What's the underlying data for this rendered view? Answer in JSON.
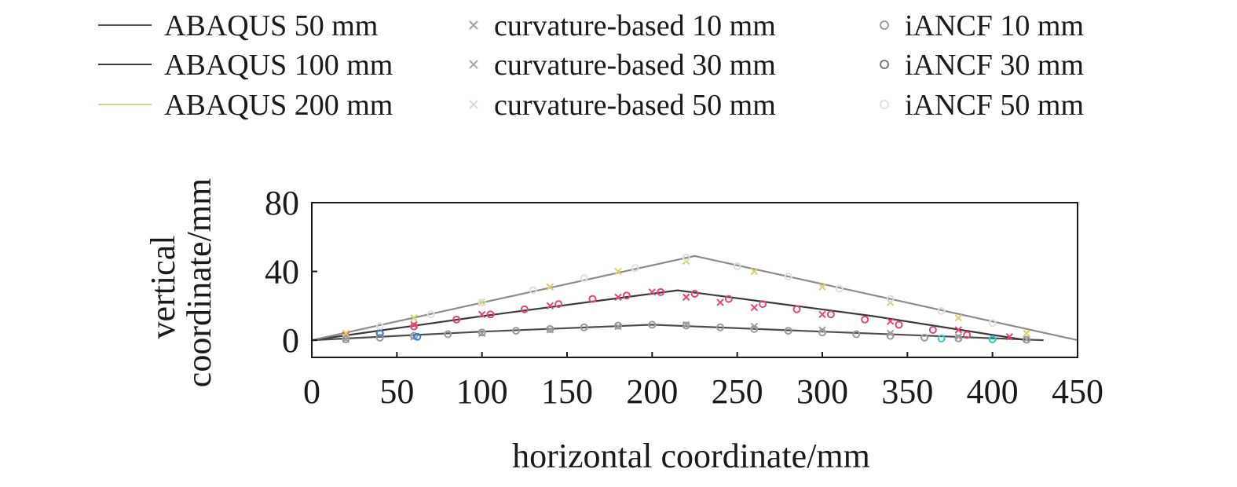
{
  "chart_data": {
    "type": "line",
    "xlabel": "horizontal coordinate/mm",
    "ylabel_lines": [
      "vertical",
      "coordinate/mm"
    ],
    "xlim": [
      0,
      450
    ],
    "ylim": [
      -10,
      80
    ],
    "xticks": [
      0,
      50,
      100,
      150,
      200,
      250,
      300,
      350,
      400,
      450
    ],
    "yticks": [
      0,
      40,
      80
    ],
    "grid": false,
    "legend_position": "top",
    "legend": [
      {
        "label": "ABAQUS 50 mm",
        "kind": "line"
      },
      {
        "label": "curvature-based 10 mm",
        "kind": "cross"
      },
      {
        "label": "iANCF 10 mm",
        "kind": "circle"
      },
      {
        "label": "ABAQUS 100 mm",
        "kind": "line"
      },
      {
        "label": "curvature-based 30 mm",
        "kind": "cross"
      },
      {
        "label": "iANCF 30 mm",
        "kind": "circle"
      },
      {
        "label": "ABAQUS 200 mm",
        "kind": "line"
      },
      {
        "label": "curvature-based 50 mm",
        "kind": "cross"
      },
      {
        "label": "iANCF 50 mm",
        "kind": "circle"
      }
    ],
    "series": [
      {
        "name": "ABAQUS 50 mm",
        "kind": "line",
        "color": "#4d4d4d",
        "x": [
          0,
          100,
          200,
          300,
          430
        ],
        "y": [
          0,
          5,
          9,
          5,
          0
        ]
      },
      {
        "name": "ABAQUS 100 mm",
        "kind": "line",
        "color": "#3a3a3a",
        "x": [
          0,
          100,
          215,
          330,
          420
        ],
        "y": [
          0,
          14,
          29,
          14,
          0
        ]
      },
      {
        "name": "ABAQUS 200 mm",
        "kind": "line",
        "color": "#8c8c8c",
        "x": [
          0,
          110,
          225,
          340,
          450
        ],
        "y": [
          0,
          24,
          49,
          24,
          0
        ]
      },
      {
        "name": "curvature-based 10 mm",
        "kind": "cross",
        "color": "#a0a0a0",
        "x": [
          20,
          60,
          100,
          140,
          180,
          220,
          260,
          300,
          340,
          380,
          420
        ],
        "y": [
          0.5,
          2,
          4,
          6,
          8,
          9,
          8,
          6,
          4,
          2,
          0.5
        ]
      },
      {
        "name": "curvature-based 30 mm",
        "kind": "cross",
        "color": "#e0457b",
        "x": [
          20,
          60,
          100,
          140,
          180,
          200,
          220,
          240,
          260,
          300,
          340,
          380,
          410
        ],
        "y": [
          3,
          9,
          15,
          20,
          25,
          28,
          25,
          22,
          19,
          15,
          11,
          6,
          2
        ]
      },
      {
        "name": "curvature-based 50 mm",
        "kind": "cross",
        "color": "#d8d070",
        "x": [
          20,
          60,
          100,
          140,
          180,
          220,
          260,
          300,
          340,
          380,
          420
        ],
        "y": [
          4,
          13,
          22,
          31,
          40,
          46,
          40,
          31,
          22,
          13,
          4
        ]
      },
      {
        "name": "iANCF 10 mm",
        "kind": "circle",
        "color": "#9a9a9a",
        "x": [
          20,
          40,
          60,
          80,
          100,
          120,
          140,
          160,
          180,
          200,
          220,
          240,
          260,
          280,
          300,
          320,
          340,
          360,
          380,
          400,
          420
        ],
        "y": [
          0.5,
          1.5,
          2.5,
          3.5,
          4.5,
          5.5,
          6.5,
          7.5,
          8.5,
          9,
          8.5,
          7.5,
          6.5,
          5.5,
          4.5,
          3.5,
          2.5,
          1.5,
          1,
          0.5,
          0.3
        ]
      },
      {
        "name": "iANCF 30 mm",
        "kind": "circle",
        "color": "#e0457b",
        "x": [
          40,
          60,
          85,
          105,
          125,
          145,
          165,
          185,
          205,
          225,
          245,
          265,
          285,
          305,
          325,
          345,
          365,
          385
        ],
        "y": [
          4,
          8,
          12,
          15,
          18,
          21,
          24,
          26,
          28,
          27,
          24,
          21,
          18,
          15,
          12,
          9,
          6,
          3
        ]
      },
      {
        "name": "iANCF 50 mm",
        "kind": "circle",
        "color": "#dedede",
        "x": [
          40,
          70,
          100,
          130,
          160,
          190,
          220,
          250,
          280,
          310,
          340,
          370,
          400
        ],
        "y": [
          8,
          15,
          22,
          29,
          36,
          42,
          48,
          43,
          37,
          30,
          24,
          17,
          10
        ]
      },
      {
        "name": "iANCF 30 mm",
        "kind": "circle",
        "color": "#3a7bd5",
        "x": [
          40,
          62
        ],
        "y": [
          4,
          2
        ]
      },
      {
        "name": "iANCF 10 mm",
        "kind": "circle",
        "color": "#40c0c0",
        "x": [
          370,
          400
        ],
        "y": [
          1,
          0.5
        ]
      }
    ]
  }
}
